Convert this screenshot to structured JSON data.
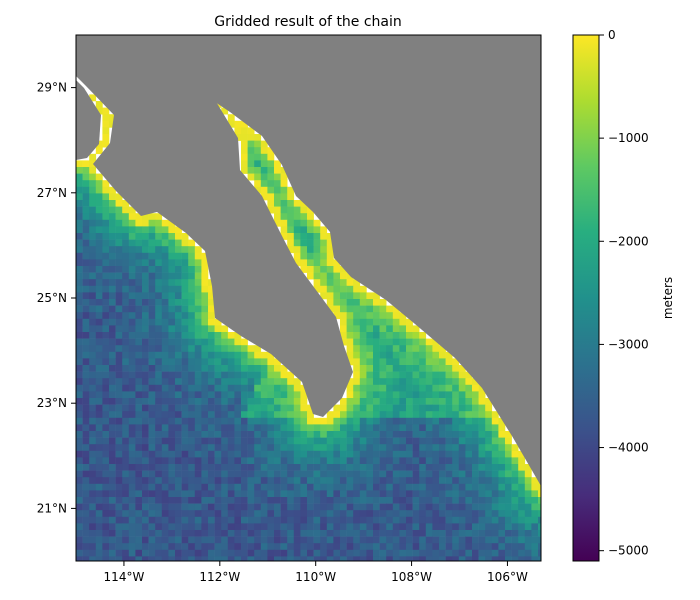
{
  "title": "Gridded result of the chain",
  "map": {
    "lon_range": [
      -115,
      -105.3
    ],
    "lat_range": [
      20,
      30
    ],
    "land_color": "#808080",
    "x_ticks": [
      {
        "value": -114,
        "label": "114°W"
      },
      {
        "value": -112,
        "label": "112°W"
      },
      {
        "value": -110,
        "label": "110°W"
      },
      {
        "value": -108,
        "label": "108°W"
      },
      {
        "value": -106,
        "label": "106°W"
      }
    ],
    "y_ticks": [
      {
        "value": 21,
        "label": "21°N"
      },
      {
        "value": 23,
        "label": "23°N"
      },
      {
        "value": 25,
        "label": "25°N"
      },
      {
        "value": 27,
        "label": "27°N"
      },
      {
        "value": 29,
        "label": "29°N"
      }
    ]
  },
  "colorbar": {
    "label": "meters",
    "range": [
      -5100,
      0
    ],
    "colormap": "viridis",
    "ticks": [
      {
        "value": 0,
        "label": "0"
      },
      {
        "value": -1000,
        "label": "−1000"
      },
      {
        "value": -2000,
        "label": "−2000"
      },
      {
        "value": -3000,
        "label": "−3000"
      },
      {
        "value": -4000,
        "label": "−4000"
      },
      {
        "value": -5000,
        "label": "−5000"
      }
    ]
  }
}
